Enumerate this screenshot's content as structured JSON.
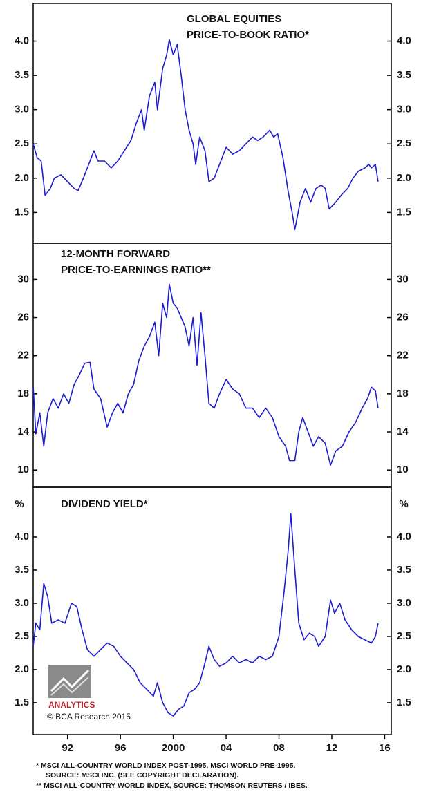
{
  "chart_data": [
    {
      "type": "line",
      "title": [
        "GLOBAL EQUITIES",
        "PRICE-TO-BOOK RATIO*"
      ],
      "xlim": [
        1989.4,
        2016.5
      ],
      "ylim": [
        1.05,
        4.55
      ],
      "yticks": [
        {
          "value": 1.5,
          "label": "1.5"
        },
        {
          "value": 2,
          "label": "2.0"
        },
        {
          "value": 2.5,
          "label": "2.5"
        },
        {
          "value": 3,
          "label": "3.0"
        },
        {
          "value": 3.5,
          "label": "3.5"
        },
        {
          "value": 4,
          "label": "4.0"
        }
      ],
      "series": [
        {
          "name": "Price-to-book ratio",
          "color": "#1c1cd0",
          "x": [
            1989.4,
            1989.7,
            1990.0,
            1990.3,
            1990.7,
            1991.0,
            1991.5,
            1992.0,
            1992.5,
            1992.8,
            1993.2,
            1993.6,
            1994.0,
            1994.3,
            1994.8,
            1995.3,
            1995.8,
            1996.3,
            1996.8,
            1997.2,
            1997.6,
            1997.8,
            1998.2,
            1998.6,
            1998.8,
            1999.2,
            1999.5,
            1999.7,
            2000.0,
            2000.3,
            2000.6,
            2000.9,
            2001.2,
            2001.5,
            2001.7,
            2002.0,
            2002.4,
            2002.7,
            2003.1,
            2003.5,
            2004.0,
            2004.5,
            2005.0,
            2005.5,
            2006.0,
            2006.4,
            2006.8,
            2007.3,
            2007.6,
            2007.9,
            2008.3,
            2008.7,
            2009.0,
            2009.2,
            2009.6,
            2010.0,
            2010.4,
            2010.8,
            2011.2,
            2011.5,
            2011.8,
            2012.3,
            2012.7,
            2013.2,
            2013.6,
            2014.0,
            2014.5,
            2014.8,
            2015.0,
            2015.3,
            2015.5
          ],
          "values": [
            2.5,
            2.3,
            2.25,
            1.75,
            1.85,
            2.0,
            2.05,
            1.95,
            1.85,
            1.82,
            2.0,
            2.2,
            2.4,
            2.25,
            2.25,
            2.15,
            2.25,
            2.4,
            2.55,
            2.8,
            3.0,
            2.7,
            3.2,
            3.4,
            3.0,
            3.6,
            3.8,
            4.02,
            3.8,
            3.95,
            3.5,
            3.0,
            2.7,
            2.5,
            2.2,
            2.6,
            2.4,
            1.95,
            2.0,
            2.2,
            2.45,
            2.35,
            2.4,
            2.5,
            2.6,
            2.55,
            2.6,
            2.7,
            2.6,
            2.65,
            2.3,
            1.8,
            1.5,
            1.25,
            1.65,
            1.85,
            1.65,
            1.85,
            1.9,
            1.85,
            1.55,
            1.65,
            1.75,
            1.85,
            2.0,
            2.1,
            2.15,
            2.2,
            2.15,
            2.2,
            1.95
          ]
        }
      ]
    },
    {
      "type": "line",
      "title": [
        "12-MONTH FORWARD",
        "PRICE-TO-EARNINGS RATIO**"
      ],
      "xlim": [
        1989.4,
        2016.5
      ],
      "ylim": [
        8.2,
        33.8
      ],
      "yticks": [
        10,
        14,
        18,
        22,
        26,
        30
      ],
      "series": [
        {
          "name": "Forward P/E ratio",
          "color": "#1c1cd0",
          "x": [
            1989.4,
            1989.6,
            1989.9,
            1990.2,
            1990.5,
            1990.9,
            1991.3,
            1991.7,
            1992.1,
            1992.5,
            1992.9,
            1993.3,
            1993.7,
            1994.0,
            1994.5,
            1995.0,
            1995.4,
            1995.8,
            1996.2,
            1996.6,
            1997.0,
            1997.4,
            1997.8,
            1998.2,
            1998.6,
            1998.9,
            1999.2,
            1999.5,
            1999.7,
            2000.0,
            2000.3,
            2000.6,
            2000.9,
            2001.2,
            2001.5,
            2001.8,
            2002.1,
            2002.4,
            2002.7,
            2003.1,
            2003.5,
            2004.0,
            2004.5,
            2005.0,
            2005.5,
            2006.0,
            2006.5,
            2007.0,
            2007.5,
            2008.0,
            2008.5,
            2008.8,
            2009.2,
            2009.5,
            2009.8,
            2010.2,
            2010.6,
            2011.0,
            2011.5,
            2011.9,
            2012.3,
            2012.8,
            2013.3,
            2013.8,
            2014.3,
            2014.7,
            2015.0,
            2015.3,
            2015.5
          ],
          "values": [
            18.8,
            13.8,
            16,
            12.5,
            16,
            17.5,
            16.5,
            18,
            17,
            19,
            20,
            21.2,
            21.3,
            18.5,
            17.5,
            14.5,
            16,
            17,
            16,
            18,
            19,
            21.5,
            23,
            24,
            25.5,
            22,
            27.5,
            26,
            29.5,
            27.5,
            27,
            26,
            25,
            23,
            26,
            21,
            26.5,
            22,
            17,
            16.5,
            18,
            19.5,
            18.5,
            18,
            16.5,
            16.5,
            15.5,
            16.5,
            15.5,
            13.5,
            12.5,
            11,
            11,
            14,
            15.5,
            14,
            12.5,
            13.5,
            12.8,
            10.5,
            12,
            12.5,
            14,
            15,
            16.5,
            17.5,
            18.7,
            18.3,
            16.5
          ]
        }
      ]
    },
    {
      "type": "line",
      "title": [
        "DIVIDEND YIELD*"
      ],
      "y_unit": "%",
      "xlim": [
        1989.4,
        2016.5
      ],
      "ylim": [
        1.02,
        4.75
      ],
      "xticks": [
        {
          "value": 1992,
          "label": "92"
        },
        {
          "value": 1996,
          "label": "96"
        },
        2000,
        {
          "value": 2004,
          "label": "04"
        },
        {
          "value": 2008,
          "label": "08"
        },
        {
          "value": 2012,
          "label": "12"
        },
        {
          "value": 2016,
          "label": "16"
        }
      ],
      "yticks": [
        {
          "value": 1.5,
          "label": "1.5"
        },
        {
          "value": 2,
          "label": "2.0"
        },
        {
          "value": 2.5,
          "label": "2.5"
        },
        {
          "value": 3,
          "label": "3.0"
        },
        {
          "value": 3.5,
          "label": "3.5"
        },
        {
          "value": 4,
          "label": "4.0"
        }
      ],
      "series": [
        {
          "name": "Dividend yield",
          "color": "#1c1cd0",
          "x": [
            1989.4,
            1989.6,
            1989.9,
            1990.2,
            1990.5,
            1990.8,
            1991.3,
            1991.8,
            1992.3,
            1992.7,
            1993.1,
            1993.5,
            1994.0,
            1994.5,
            1995.0,
            1995.5,
            1996.0,
            1996.5,
            1997.0,
            1997.5,
            1998.0,
            1998.5,
            1998.8,
            1999.2,
            1999.6,
            2000.0,
            2000.4,
            2000.8,
            2001.2,
            2001.6,
            2002.0,
            2002.4,
            2002.7,
            2003.1,
            2003.5,
            2004.0,
            2004.5,
            2005.0,
            2005.5,
            2006.0,
            2006.5,
            2007.0,
            2007.5,
            2008.0,
            2008.4,
            2008.7,
            2008.9,
            2009.2,
            2009.5,
            2009.9,
            2010.3,
            2010.7,
            2011.0,
            2011.5,
            2011.9,
            2012.2,
            2012.6,
            2013.0,
            2013.5,
            2014.0,
            2014.5,
            2015.0,
            2015.3,
            2015.5
          ],
          "values": [
            2.35,
            2.7,
            2.6,
            3.3,
            3.1,
            2.7,
            2.75,
            2.7,
            3.0,
            2.95,
            2.6,
            2.3,
            2.2,
            2.3,
            2.4,
            2.35,
            2.2,
            2.1,
            2.0,
            1.8,
            1.7,
            1.6,
            1.8,
            1.5,
            1.35,
            1.3,
            1.4,
            1.45,
            1.65,
            1.7,
            1.8,
            2.1,
            2.35,
            2.15,
            2.05,
            2.1,
            2.2,
            2.1,
            2.15,
            2.1,
            2.2,
            2.15,
            2.2,
            2.5,
            3.2,
            3.8,
            4.35,
            3.5,
            2.7,
            2.45,
            2.55,
            2.5,
            2.35,
            2.5,
            3.05,
            2.85,
            3.0,
            2.75,
            2.6,
            2.5,
            2.45,
            2.4,
            2.5,
            2.7
          ]
        }
      ]
    }
  ],
  "logo": "ANALYTICS",
  "copyright": "© BCA Research 2015",
  "footnotes": [
    "*  MSCI ALL-COUNTRY WORLD INDEX POST-1995, MSCI WORLD PRE-1995.",
    "SOURCE: MSCI INC. (SEE COPYRIGHT DECLARATION).",
    "** MSCI ALL-COUNTRY WORLD INDEX, SOURCE: THOMSON REUTERS / IBES."
  ]
}
